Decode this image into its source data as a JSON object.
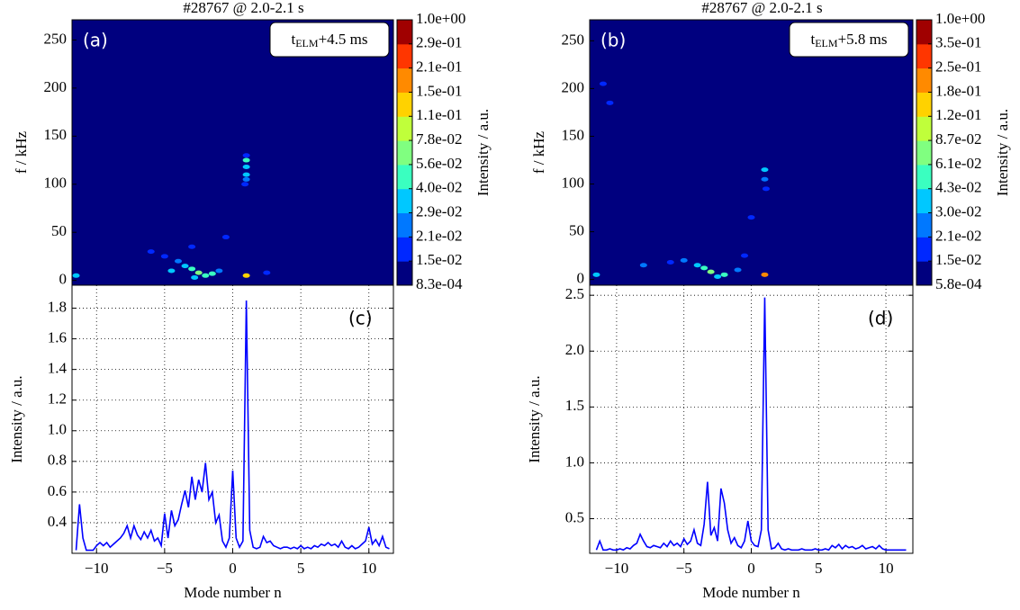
{
  "chart_data": [
    {
      "type": "heatmap",
      "title": "#28767 @ 2.0-2.1 s",
      "ylabel": "f / kHz",
      "panel_label": "(a)",
      "time_label": [
        "t",
        "ELM",
        "+4.5 ms"
      ],
      "xlim": [
        -11.8,
        11.8
      ],
      "ylim": [
        -5,
        271
      ],
      "yticks": [
        0,
        50,
        100,
        150,
        200,
        250
      ],
      "points": {
        "x": [
          1,
          1,
          1,
          1,
          0.9,
          1,
          -3,
          -2.5,
          -2,
          -3.5,
          -4,
          -1.5,
          -2.8,
          1,
          -5,
          -6,
          -4.5,
          -1,
          2.5,
          -11.5,
          -3,
          -0.5
        ],
        "y": [
          125,
          118,
          110,
          105,
          100,
          130,
          12,
          8,
          5,
          15,
          20,
          7,
          3,
          5,
          25,
          30,
          10,
          10,
          8,
          5,
          35,
          45
        ],
        "values": [
          0.04,
          0.03,
          0.03,
          0.025,
          0.02,
          0.018,
          0.045,
          0.06,
          0.05,
          0.03,
          0.025,
          0.04,
          0.035,
          0.12,
          0.02,
          0.017,
          0.03,
          0.025,
          0.02,
          0.03,
          0.016,
          0.016
        ]
      },
      "colorbar": {
        "label": "Intensity / a.u.",
        "levels": [
          {
            "value": 0.00083,
            "label": "8.3e-04"
          },
          {
            "value": 0.015,
            "label": "1.5e-02"
          },
          {
            "value": 0.021,
            "label": "2.1e-02"
          },
          {
            "value": 0.029,
            "label": "2.9e-02"
          },
          {
            "value": 0.04,
            "label": "4.0e-02"
          },
          {
            "value": 0.056,
            "label": "5.6e-02"
          },
          {
            "value": 0.078,
            "label": "7.8e-02"
          },
          {
            "value": 0.11,
            "label": "1.1e-01"
          },
          {
            "value": 0.15,
            "label": "1.5e-01"
          },
          {
            "value": 0.21,
            "label": "2.1e-01"
          },
          {
            "value": 0.29,
            "label": "2.9e-01"
          },
          {
            "value": 1.0,
            "label": "1.0e+00"
          }
        ],
        "colors": [
          "#00007f",
          "#0028ff",
          "#0078ff",
          "#00c8ff",
          "#3affc0",
          "#80ff80",
          "#c0ff3a",
          "#ffd200",
          "#ff8a00",
          "#ff3600",
          "#a00000"
        ]
      }
    },
    {
      "type": "heatmap",
      "title": "#28767 @ 2.0-2.1 s",
      "ylabel": "f / kHz",
      "panel_label": "(b)",
      "time_label": [
        "t",
        "ELM",
        "+5.8 ms"
      ],
      "xlim": [
        -12,
        12
      ],
      "ylim": [
        -6,
        272
      ],
      "yticks": [
        0,
        50,
        100,
        150,
        200,
        250
      ],
      "points": {
        "x": [
          1,
          1,
          1.1,
          -3.5,
          -3,
          -2,
          -4,
          -2.5,
          1,
          -5,
          -8,
          -6,
          -10.5,
          -11,
          -1,
          -0.5,
          -11.5,
          0
        ],
        "y": [
          115,
          105,
          95,
          12,
          8,
          5,
          15,
          3,
          5,
          20,
          15,
          18,
          185,
          205,
          10,
          25,
          5,
          65
        ],
        "values": [
          0.03,
          0.021,
          0.018,
          0.045,
          0.061,
          0.043,
          0.03,
          0.035,
          0.18,
          0.021,
          0.021,
          0.018,
          0.017,
          0.016,
          0.025,
          0.018,
          0.03,
          0.016
        ]
      },
      "colorbar": {
        "label": "Intensity / a.u.",
        "levels": [
          {
            "value": 0.00058,
            "label": "5.8e-04"
          },
          {
            "value": 0.015,
            "label": "1.5e-02"
          },
          {
            "value": 0.021,
            "label": "2.1e-02"
          },
          {
            "value": 0.03,
            "label": "3.0e-02"
          },
          {
            "value": 0.043,
            "label": "4.3e-02"
          },
          {
            "value": 0.061,
            "label": "6.1e-02"
          },
          {
            "value": 0.087,
            "label": "8.7e-02"
          },
          {
            "value": 0.12,
            "label": "1.2e-01"
          },
          {
            "value": 0.18,
            "label": "1.8e-01"
          },
          {
            "value": 0.25,
            "label": "2.5e-01"
          },
          {
            "value": 0.35,
            "label": "3.5e-01"
          },
          {
            "value": 1.0,
            "label": "1.0e+00"
          }
        ],
        "colors": [
          "#00007f",
          "#0028ff",
          "#0078ff",
          "#00c8ff",
          "#3affc0",
          "#80ff80",
          "#c0ff3a",
          "#ffd200",
          "#ff8a00",
          "#ff3600",
          "#a00000"
        ]
      }
    },
    {
      "type": "line",
      "xlabel": "Mode number n",
      "ylabel": "Intensity / a.u.",
      "panel_label": "(c)",
      "grid": true,
      "xlim": [
        -11.8,
        11.8
      ],
      "ylim": [
        0.2,
        1.95
      ],
      "xticks": [
        {
          "value": -10,
          "label": "−10"
        },
        {
          "value": -5,
          "label": "−5"
        },
        0,
        5,
        10
      ],
      "yticks": [
        0.4,
        0.6,
        0.8,
        {
          "value": 1.0,
          "label": "1.0"
        },
        1.2,
        1.4,
        1.6,
        1.8
      ],
      "x": [
        -11.5,
        -11.25,
        -11,
        -10.75,
        -10.5,
        -10.25,
        -10,
        -9.75,
        -9.5,
        -9.25,
        -9,
        -8.75,
        -8.5,
        -8.25,
        -8,
        -7.75,
        -7.5,
        -7.25,
        -7,
        -6.75,
        -6.5,
        -6.25,
        -6,
        -5.75,
        -5.5,
        -5.25,
        -5,
        -4.75,
        -4.5,
        -4.25,
        -4,
        -3.75,
        -3.5,
        -3.25,
        -3,
        -2.75,
        -2.5,
        -2.25,
        -2,
        -1.75,
        -1.5,
        -1.25,
        -1,
        -0.75,
        -0.5,
        -0.25,
        0,
        0.25,
        0.5,
        0.75,
        1,
        1.25,
        1.5,
        1.75,
        2,
        2.25,
        2.5,
        2.75,
        3,
        3.25,
        3.5,
        3.75,
        4,
        4.25,
        4.5,
        4.75,
        5,
        5.25,
        5.5,
        5.75,
        6,
        6.25,
        6.5,
        6.75,
        7,
        7.25,
        7.5,
        7.75,
        8,
        8.25,
        8.5,
        8.75,
        9,
        9.25,
        9.5,
        9.75,
        10,
        10.25,
        10.5,
        10.75,
        11,
        11.25,
        11.5
      ],
      "series": [
        {
          "color": "#0000ff",
          "values": [
            0.22,
            0.52,
            0.3,
            0.22,
            0.22,
            0.22,
            0.25,
            0.27,
            0.25,
            0.27,
            0.24,
            0.26,
            0.28,
            0.3,
            0.33,
            0.38,
            0.3,
            0.38,
            0.32,
            0.29,
            0.34,
            0.3,
            0.35,
            0.28,
            0.3,
            0.25,
            0.46,
            0.3,
            0.48,
            0.38,
            0.42,
            0.52,
            0.61,
            0.5,
            0.7,
            0.55,
            0.68,
            0.6,
            0.79,
            0.55,
            0.6,
            0.4,
            0.45,
            0.28,
            0.24,
            0.3,
            0.74,
            0.3,
            0.24,
            0.28,
            1.85,
            0.35,
            0.24,
            0.23,
            0.24,
            0.31,
            0.27,
            0.28,
            0.25,
            0.24,
            0.23,
            0.24,
            0.24,
            0.23,
            0.24,
            0.23,
            0.25,
            0.23,
            0.24,
            0.23,
            0.25,
            0.24,
            0.26,
            0.25,
            0.27,
            0.25,
            0.26,
            0.24,
            0.28,
            0.24,
            0.23,
            0.25,
            0.23,
            0.24,
            0.26,
            0.28,
            0.37,
            0.26,
            0.29,
            0.25,
            0.31,
            0.24,
            0.23
          ]
        }
      ]
    },
    {
      "type": "line",
      "xlabel": "Mode number n",
      "ylabel": "Intensity / a.u.",
      "panel_label": "(d)",
      "grid": true,
      "xlim": [
        -12,
        12
      ],
      "ylim": [
        0.19,
        2.59
      ],
      "xticks": [
        {
          "value": -10,
          "label": "−10"
        },
        {
          "value": -5,
          "label": "−5"
        },
        0,
        5,
        10
      ],
      "yticks": [
        0.5,
        {
          "value": 1.0,
          "label": "1.0"
        },
        1.5,
        {
          "value": 2.0,
          "label": "2.0"
        },
        2.5
      ],
      "x": [
        -11.5,
        -11.25,
        -11,
        -10.75,
        -10.5,
        -10.25,
        -10,
        -9.75,
        -9.5,
        -9.25,
        -9,
        -8.75,
        -8.5,
        -8.25,
        -8,
        -7.75,
        -7.5,
        -7.25,
        -7,
        -6.75,
        -6.5,
        -6.25,
        -6,
        -5.75,
        -5.5,
        -5.25,
        -5,
        -4.75,
        -4.5,
        -4.25,
        -4,
        -3.75,
        -3.5,
        -3.25,
        -3,
        -2.75,
        -2.5,
        -2.25,
        -2,
        -1.75,
        -1.5,
        -1.25,
        -1,
        -0.75,
        -0.5,
        -0.25,
        0,
        0.25,
        0.5,
        0.75,
        1,
        1.25,
        1.5,
        1.75,
        2,
        2.25,
        2.5,
        2.75,
        3,
        3.25,
        3.5,
        3.75,
        4,
        4.25,
        4.5,
        4.75,
        5,
        5.25,
        5.5,
        5.75,
        6,
        6.25,
        6.5,
        6.75,
        7,
        7.25,
        7.5,
        7.75,
        8,
        8.25,
        8.5,
        8.75,
        9,
        9.25,
        9.5,
        9.75,
        10,
        10.25,
        10.5,
        10.75,
        11,
        11.25,
        11.5
      ],
      "series": [
        {
          "color": "#0000ff",
          "values": [
            0.22,
            0.3,
            0.22,
            0.22,
            0.23,
            0.22,
            0.22,
            0.23,
            0.22,
            0.24,
            0.23,
            0.26,
            0.28,
            0.36,
            0.3,
            0.25,
            0.24,
            0.26,
            0.25,
            0.24,
            0.28,
            0.25,
            0.3,
            0.26,
            0.28,
            0.25,
            0.32,
            0.27,
            0.3,
            0.4,
            0.28,
            0.26,
            0.45,
            0.83,
            0.35,
            0.42,
            0.3,
            0.77,
            0.64,
            0.4,
            0.28,
            0.33,
            0.26,
            0.24,
            0.3,
            0.48,
            0.3,
            0.26,
            0.25,
            0.4,
            2.48,
            0.4,
            0.23,
            0.24,
            0.28,
            0.23,
            0.22,
            0.23,
            0.22,
            0.22,
            0.22,
            0.23,
            0.22,
            0.22,
            0.22,
            0.23,
            0.22,
            0.22,
            0.23,
            0.22,
            0.26,
            0.24,
            0.27,
            0.23,
            0.26,
            0.24,
            0.25,
            0.23,
            0.24,
            0.26,
            0.23,
            0.24,
            0.25,
            0.23,
            0.26,
            0.23,
            0.22,
            0.22,
            0.22,
            0.22,
            0.22,
            0.22,
            0.22
          ]
        }
      ]
    }
  ]
}
